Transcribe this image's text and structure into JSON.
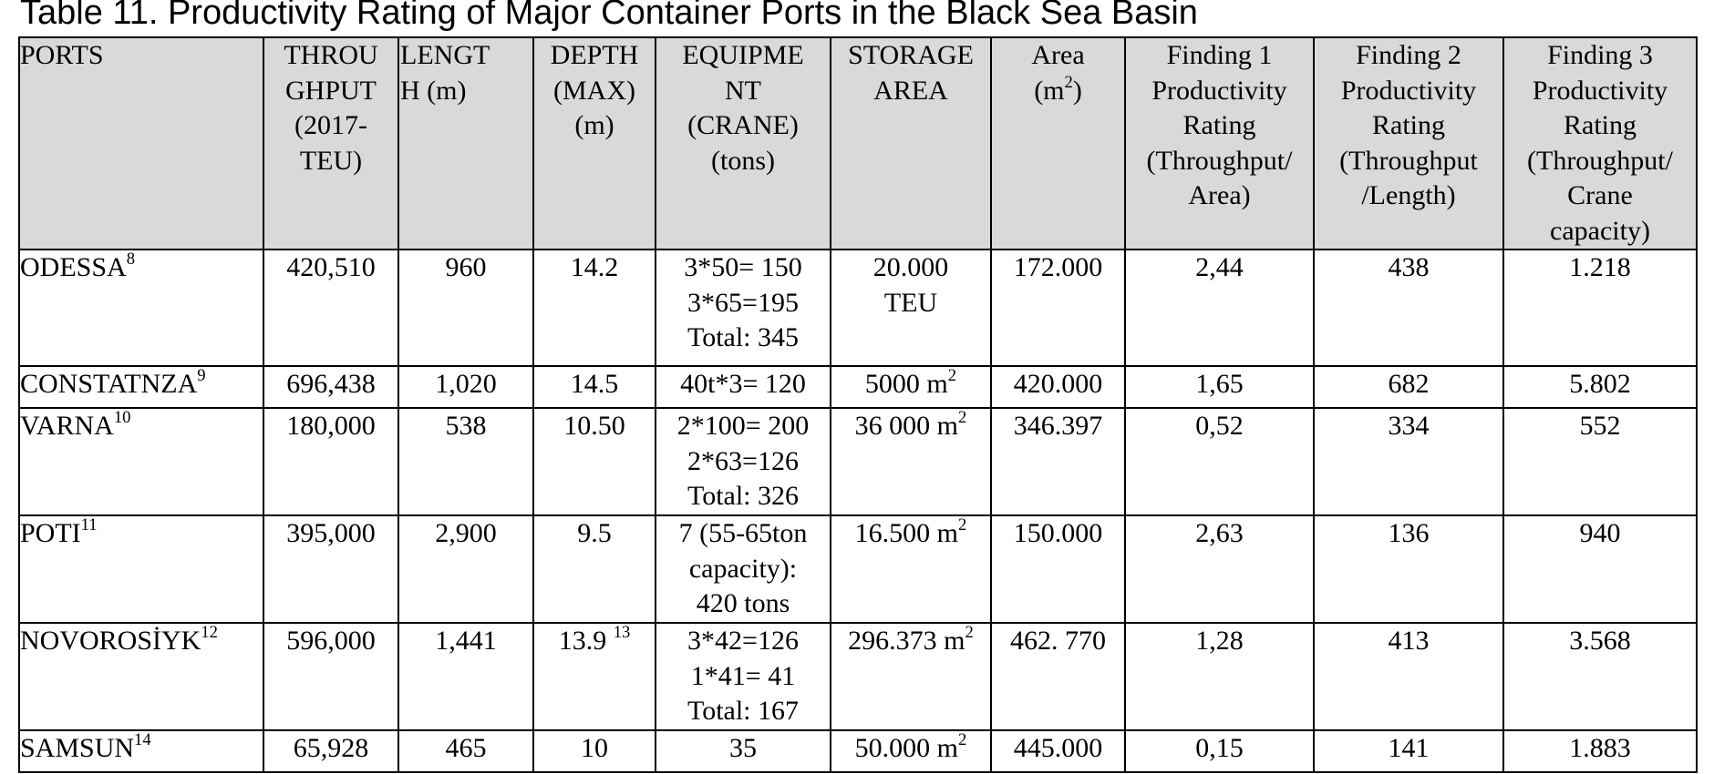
{
  "caption": "Table 11. Productivity Rating of Major Container Ports in the Black Sea Basin",
  "headers": {
    "ports": "PORTS",
    "throughput": "THROU\nGHPUT\n(2017-\nTEU)",
    "length": "LENGT\nH (m)",
    "depth": "DEPTH\n(MAX)\n(m)",
    "equipment": "EQUIPME\nNT\n(CRANE)\n(tons)",
    "storage": "STORAGE\nAREA",
    "area_base": "Area\n(m",
    "area_sup": "2",
    "area_tail": ")",
    "finding1": "Finding 1\nProductivity\nRating\n(Throughput/\nArea)",
    "finding2": "Finding 2\nProductivity\nRating\n(Throughput\n/Length)",
    "finding3": "Finding 3\nProductivity\nRating\n(Throughput/\nCrane\ncapacity)"
  },
  "rows": [
    {
      "port": "ODESSA",
      "port_sup": "8",
      "throughput": "420,510",
      "length": "960",
      "depth": "14.2",
      "depth_sup": "",
      "equipment_lines": [
        "3*50= 150",
        "3*65=195",
        "Total: 345"
      ],
      "storage": "20.000\nTEU",
      "storage_sup": "",
      "area": "172.000",
      "f1": "2,44",
      "f2": "438",
      "f3": "1.218"
    },
    {
      "port": "CONSTATNZA",
      "port_sup": "9",
      "throughput": "696,438",
      "length": "1,020",
      "depth": "14.5",
      "depth_sup": "",
      "equipment_lines": [
        "40t*3= 120"
      ],
      "storage": "5000 m",
      "storage_sup": "2",
      "area": "420.000",
      "f1": "1,65",
      "f2": "682",
      "f3": "5.802"
    },
    {
      "port": "VARNA",
      "port_sup": "10",
      "throughput": "180,000",
      "length": "538",
      "depth": "10.50",
      "depth_sup": "",
      "equipment_lines": [
        "2*100= 200",
        "2*63=126",
        "Total: 326"
      ],
      "storage": "36 000 m",
      "storage_sup": "2",
      "area": "346.397",
      "f1": "0,52",
      "f2": "334",
      "f3": "552"
    },
    {
      "port": "POTI",
      "port_sup": "11",
      "throughput": "395,000",
      "length": "2,900",
      "depth": "9.5",
      "depth_sup": "",
      "equipment_lines": [
        "7 (55-65ton",
        "capacity):",
        "420 tons"
      ],
      "storage": "16.500 m",
      "storage_sup": "2",
      "area": "150.000",
      "f1": "2,63",
      "f2": "136",
      "f3": "940"
    },
    {
      "port": "NOVOROSİYK",
      "port_sup": "12",
      "throughput": "596,000",
      "length": "1,441",
      "depth": "13.9 ",
      "depth_sup": "13",
      "equipment_lines": [
        "3*42=126",
        "1*41= 41",
        "Total: 167"
      ],
      "storage": "296.373 m",
      "storage_sup": "2",
      "area": "462. 770",
      "f1": "1,28",
      "f2": "413",
      "f3": "3.568"
    },
    {
      "port": "SAMSUN",
      "port_sup": "14",
      "throughput": "65,928",
      "length": "465",
      "depth": "10",
      "depth_sup": "",
      "equipment_lines": [
        "35"
      ],
      "storage": "50.000 m",
      "storage_sup": "2",
      "area": "445.000",
      "f1": "0,15",
      "f2": "141",
      "f3": "1.883"
    }
  ]
}
